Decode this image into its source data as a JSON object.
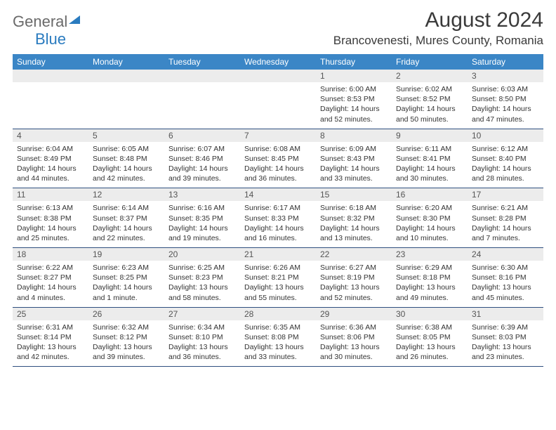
{
  "logo": {
    "text_gray": "Genera",
    "text_blue": "Blue",
    "tri_color": "#2a7bbf"
  },
  "header": {
    "month_title": "August 2024",
    "location": "Brancovenesti, Mures County, Romania"
  },
  "colors": {
    "header_bg": "#3b86c6",
    "header_text": "#ffffff",
    "daynum_bg": "#ececec",
    "border": "#2f4f7f"
  },
  "day_headers": [
    "Sunday",
    "Monday",
    "Tuesday",
    "Wednesday",
    "Thursday",
    "Friday",
    "Saturday"
  ],
  "weeks": [
    [
      {
        "n": "",
        "sr": "",
        "ss": "",
        "dl": ""
      },
      {
        "n": "",
        "sr": "",
        "ss": "",
        "dl": ""
      },
      {
        "n": "",
        "sr": "",
        "ss": "",
        "dl": ""
      },
      {
        "n": "",
        "sr": "",
        "ss": "",
        "dl": ""
      },
      {
        "n": "1",
        "sr": "Sunrise: 6:00 AM",
        "ss": "Sunset: 8:53 PM",
        "dl": "Daylight: 14 hours and 52 minutes."
      },
      {
        "n": "2",
        "sr": "Sunrise: 6:02 AM",
        "ss": "Sunset: 8:52 PM",
        "dl": "Daylight: 14 hours and 50 minutes."
      },
      {
        "n": "3",
        "sr": "Sunrise: 6:03 AM",
        "ss": "Sunset: 8:50 PM",
        "dl": "Daylight: 14 hours and 47 minutes."
      }
    ],
    [
      {
        "n": "4",
        "sr": "Sunrise: 6:04 AM",
        "ss": "Sunset: 8:49 PM",
        "dl": "Daylight: 14 hours and 44 minutes."
      },
      {
        "n": "5",
        "sr": "Sunrise: 6:05 AM",
        "ss": "Sunset: 8:48 PM",
        "dl": "Daylight: 14 hours and 42 minutes."
      },
      {
        "n": "6",
        "sr": "Sunrise: 6:07 AM",
        "ss": "Sunset: 8:46 PM",
        "dl": "Daylight: 14 hours and 39 minutes."
      },
      {
        "n": "7",
        "sr": "Sunrise: 6:08 AM",
        "ss": "Sunset: 8:45 PM",
        "dl": "Daylight: 14 hours and 36 minutes."
      },
      {
        "n": "8",
        "sr": "Sunrise: 6:09 AM",
        "ss": "Sunset: 8:43 PM",
        "dl": "Daylight: 14 hours and 33 minutes."
      },
      {
        "n": "9",
        "sr": "Sunrise: 6:11 AM",
        "ss": "Sunset: 8:41 PM",
        "dl": "Daylight: 14 hours and 30 minutes."
      },
      {
        "n": "10",
        "sr": "Sunrise: 6:12 AM",
        "ss": "Sunset: 8:40 PM",
        "dl": "Daylight: 14 hours and 28 minutes."
      }
    ],
    [
      {
        "n": "11",
        "sr": "Sunrise: 6:13 AM",
        "ss": "Sunset: 8:38 PM",
        "dl": "Daylight: 14 hours and 25 minutes."
      },
      {
        "n": "12",
        "sr": "Sunrise: 6:14 AM",
        "ss": "Sunset: 8:37 PM",
        "dl": "Daylight: 14 hours and 22 minutes."
      },
      {
        "n": "13",
        "sr": "Sunrise: 6:16 AM",
        "ss": "Sunset: 8:35 PM",
        "dl": "Daylight: 14 hours and 19 minutes."
      },
      {
        "n": "14",
        "sr": "Sunrise: 6:17 AM",
        "ss": "Sunset: 8:33 PM",
        "dl": "Daylight: 14 hours and 16 minutes."
      },
      {
        "n": "15",
        "sr": "Sunrise: 6:18 AM",
        "ss": "Sunset: 8:32 PM",
        "dl": "Daylight: 14 hours and 13 minutes."
      },
      {
        "n": "16",
        "sr": "Sunrise: 6:20 AM",
        "ss": "Sunset: 8:30 PM",
        "dl": "Daylight: 14 hours and 10 minutes."
      },
      {
        "n": "17",
        "sr": "Sunrise: 6:21 AM",
        "ss": "Sunset: 8:28 PM",
        "dl": "Daylight: 14 hours and 7 minutes."
      }
    ],
    [
      {
        "n": "18",
        "sr": "Sunrise: 6:22 AM",
        "ss": "Sunset: 8:27 PM",
        "dl": "Daylight: 14 hours and 4 minutes."
      },
      {
        "n": "19",
        "sr": "Sunrise: 6:23 AM",
        "ss": "Sunset: 8:25 PM",
        "dl": "Daylight: 14 hours and 1 minute."
      },
      {
        "n": "20",
        "sr": "Sunrise: 6:25 AM",
        "ss": "Sunset: 8:23 PM",
        "dl": "Daylight: 13 hours and 58 minutes."
      },
      {
        "n": "21",
        "sr": "Sunrise: 6:26 AM",
        "ss": "Sunset: 8:21 PM",
        "dl": "Daylight: 13 hours and 55 minutes."
      },
      {
        "n": "22",
        "sr": "Sunrise: 6:27 AM",
        "ss": "Sunset: 8:19 PM",
        "dl": "Daylight: 13 hours and 52 minutes."
      },
      {
        "n": "23",
        "sr": "Sunrise: 6:29 AM",
        "ss": "Sunset: 8:18 PM",
        "dl": "Daylight: 13 hours and 49 minutes."
      },
      {
        "n": "24",
        "sr": "Sunrise: 6:30 AM",
        "ss": "Sunset: 8:16 PM",
        "dl": "Daylight: 13 hours and 45 minutes."
      }
    ],
    [
      {
        "n": "25",
        "sr": "Sunrise: 6:31 AM",
        "ss": "Sunset: 8:14 PM",
        "dl": "Daylight: 13 hours and 42 minutes."
      },
      {
        "n": "26",
        "sr": "Sunrise: 6:32 AM",
        "ss": "Sunset: 8:12 PM",
        "dl": "Daylight: 13 hours and 39 minutes."
      },
      {
        "n": "27",
        "sr": "Sunrise: 6:34 AM",
        "ss": "Sunset: 8:10 PM",
        "dl": "Daylight: 13 hours and 36 minutes."
      },
      {
        "n": "28",
        "sr": "Sunrise: 6:35 AM",
        "ss": "Sunset: 8:08 PM",
        "dl": "Daylight: 13 hours and 33 minutes."
      },
      {
        "n": "29",
        "sr": "Sunrise: 6:36 AM",
        "ss": "Sunset: 8:06 PM",
        "dl": "Daylight: 13 hours and 30 minutes."
      },
      {
        "n": "30",
        "sr": "Sunrise: 6:38 AM",
        "ss": "Sunset: 8:05 PM",
        "dl": "Daylight: 13 hours and 26 minutes."
      },
      {
        "n": "31",
        "sr": "Sunrise: 6:39 AM",
        "ss": "Sunset: 8:03 PM",
        "dl": "Daylight: 13 hours and 23 minutes."
      }
    ]
  ]
}
